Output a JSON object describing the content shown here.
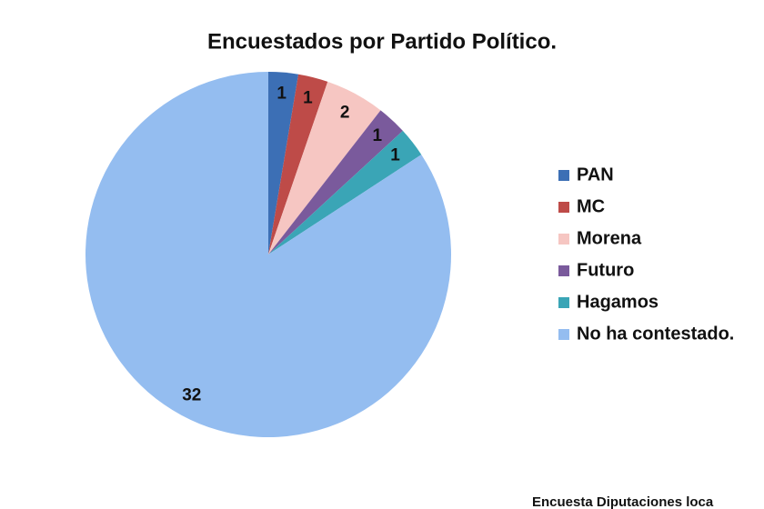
{
  "chart_data": {
    "type": "pie",
    "title": "Encuestados por Partido Político.",
    "categories": [
      "PAN",
      "MC",
      "Morena",
      "Futuro",
      "Hagamos",
      "No ha contestado."
    ],
    "values": [
      1,
      1,
      2,
      1,
      1,
      32
    ],
    "colors": [
      "#3c6fb5",
      "#be4b48",
      "#f6c6c2",
      "#7a5a9c",
      "#3aa5b6",
      "#94bdf0"
    ],
    "legend": "right",
    "footer": "Encuesta Diputaciones loca"
  }
}
